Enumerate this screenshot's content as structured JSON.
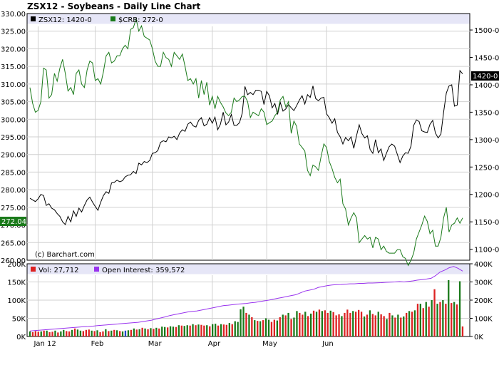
{
  "title": "ZSX12 - Soybeans - Daily Line Chart",
  "watermark": "(c) Barchart.com",
  "colors": {
    "price_line": "#000000",
    "crb_line": "#1a7a1a",
    "vol_up": "#1a7a1a",
    "vol_down": "#dd2222",
    "vol_unch": "#2244cc",
    "open_interest": "#9933ee",
    "legend_band": "#e6e6f7",
    "grid": "#d0d0d0",
    "price_tag_bg": "#000000",
    "crb_tag_bg": "#1a7a1a"
  },
  "chart_data": [
    {
      "type": "line",
      "x_label_months": [
        "Jan 12",
        "Feb",
        "Mar",
        "Apr",
        "May",
        "Jun"
      ],
      "legend": [
        {
          "series": "price",
          "text": "ZSX12: 1420-0"
        },
        {
          "series": "crb",
          "text": "$CRB: 272-0"
        }
      ],
      "left_axis": {
        "label": "$CRB",
        "range": [
          260,
          330
        ],
        "ticks": [
          "330.00",
          "325.00",
          "320.00",
          "315.00",
          "310.00",
          "305.00",
          "300.00",
          "295.00",
          "290.00",
          "285.00",
          "280.00",
          "275.00",
          "270.00",
          "265.00",
          "260.00"
        ]
      },
      "right_axis": {
        "label": "ZSX12",
        "range": [
          1080,
          1530
        ],
        "ticks": [
          "1500-0",
          "1450-0",
          "1400-0",
          "1350-0",
          "1300-0",
          "1250-0",
          "1200-0",
          "1150-0",
          "1100-0"
        ]
      },
      "last_values": {
        "price": "1420-0",
        "crb": "272.04"
      },
      "series": [
        {
          "name": "ZSX12",
          "axis": "right",
          "values": [
            1193,
            1190,
            1187,
            1192,
            1200,
            1198,
            1180,
            1183,
            1175,
            1172,
            1165,
            1160,
            1150,
            1145,
            1160,
            1150,
            1170,
            1160,
            1175,
            1168,
            1180,
            1190,
            1195,
            1186,
            1178,
            1171,
            1186,
            1198,
            1205,
            1202,
            1221,
            1222,
            1226,
            1223,
            1225,
            1232,
            1235,
            1236,
            1242,
            1238,
            1257,
            1254,
            1260,
            1258,
            1262,
            1275,
            1276,
            1280,
            1295,
            1298,
            1296,
            1305,
            1303,
            1306,
            1300,
            1312,
            1318,
            1315,
            1328,
            1332,
            1325,
            1323,
            1335,
            1340,
            1325,
            1328,
            1340,
            1330,
            1341,
            1318,
            1328,
            1350,
            1327,
            1332,
            1346,
            1326,
            1326,
            1331,
            1348,
            1397,
            1382,
            1386,
            1382,
            1390,
            1390,
            1388,
            1364,
            1388,
            1380,
            1358,
            1366,
            1346,
            1368,
            1352,
            1356,
            1364,
            1358,
            1353,
            1362,
            1372,
            1380,
            1365,
            1382,
            1377,
            1398,
            1375,
            1371,
            1376,
            1377,
            1347,
            1340,
            1330,
            1338,
            1313,
            1305,
            1292,
            1304,
            1298,
            1305,
            1284,
            1307,
            1327,
            1311,
            1303,
            1307,
            1282,
            1275,
            1300,
            1276,
            1283,
            1262,
            1275,
            1287,
            1292,
            1288,
            1273,
            1258,
            1270,
            1276,
            1275,
            1288,
            1326,
            1336,
            1333,
            1316,
            1314,
            1313,
            1328,
            1335,
            1312,
            1303,
            1310,
            1350,
            1385,
            1398,
            1400,
            1361,
            1363,
            1426,
            1420
          ]
        },
        {
          "name": "$CRB",
          "axis": "left",
          "values": [
            309.0,
            304.5,
            302.0,
            302.5,
            305.0,
            314.5,
            314.0,
            306.0,
            307.0,
            313.0,
            310.8,
            314.5,
            317.0,
            313.0,
            308.0,
            309.0,
            307.0,
            313.0,
            314.0,
            310.0,
            309.0,
            314.0,
            316.5,
            316.0,
            311.0,
            311.5,
            310.0,
            313.5,
            318.0,
            319.0,
            316.0,
            316.5,
            318.0,
            318.0,
            320.0,
            321.0,
            320.0,
            325.5,
            326.0,
            328.5,
            325.0,
            326.5,
            323.5,
            323.0,
            322.5,
            320.0,
            316.5,
            315.0,
            315.0,
            319.0,
            317.5,
            317.0,
            315.0,
            319.0,
            318.0,
            317.0,
            318.5,
            315.0,
            311.0,
            311.5,
            310.0,
            311.5,
            306.0,
            311.0,
            307.0,
            310.5,
            304.0,
            306.5,
            303.0,
            306.5,
            304.8,
            303.5,
            301.8,
            301.0,
            302.0,
            306.0,
            305.0,
            305.5,
            306.5,
            306.5,
            305.0,
            300.5,
            302.0,
            301.5,
            301.0,
            303.0,
            302.0,
            298.5,
            299.0,
            299.5,
            301.0,
            302.0,
            305.5,
            306.5,
            303.5,
            305.0,
            296.0,
            299.5,
            298.0,
            293.0,
            292.0,
            291.0,
            285.5,
            284.0,
            287.0,
            286.5,
            285.5,
            289.5,
            293.0,
            292.0,
            288.0,
            286.0,
            283.5,
            282.0,
            283.0,
            276.0,
            274.5,
            270.0,
            272.0,
            273.5,
            272.0,
            265.0,
            266.0,
            267.0,
            266.0,
            266.5,
            263.5,
            266.5,
            266.0,
            263.0,
            264.0,
            262.5,
            262.0,
            262.0,
            262.0,
            263.0,
            263.0,
            261.0,
            260.5,
            258.5,
            260.0,
            262.0,
            266.0,
            268.0,
            270.0,
            272.5,
            271.0,
            267.5,
            268.5,
            264.0,
            264.0,
            266.5,
            272.0,
            275.0,
            268.0,
            270.0,
            270.5,
            272.0,
            270.5,
            272.0
          ]
        }
      ]
    },
    {
      "type": "bar",
      "legend": [
        {
          "series": "volume",
          "text": "Vol: 27,712"
        },
        {
          "series": "open_interest",
          "text": "Open Interest: 359,572"
        }
      ],
      "left_axis": {
        "label": "Volume",
        "range": [
          0,
          200000
        ],
        "ticks": [
          "200K",
          "150K",
          "100K",
          "50K",
          "0K"
        ]
      },
      "right_axis": {
        "label": "Open Interest",
        "range": [
          0,
          400000
        ],
        "ticks": [
          "400K",
          "300K",
          "200K",
          "100K",
          "0K"
        ]
      },
      "volume": [
        14000,
        12000,
        15000,
        13000,
        14000,
        16000,
        16000,
        12000,
        13000,
        16000,
        11000,
        14000,
        18000,
        15000,
        14000,
        18000,
        22000,
        19000,
        16000,
        15000,
        18000,
        19000,
        16000,
        15000,
        17000,
        12000,
        14000,
        20000,
        15000,
        16000,
        18000,
        17000,
        15000,
        14000,
        16000,
        17000,
        18000,
        22000,
        19000,
        20000,
        24000,
        22000,
        20000,
        23000,
        21000,
        24000,
        22000,
        27000,
        26000,
        25000,
        28000,
        27000,
        26000,
        31000,
        30000,
        29000,
        31000,
        30000,
        34000,
        31000,
        33000,
        32000,
        30000,
        31000,
        28000,
        34000,
        35000,
        30000,
        34000,
        33000,
        32000,
        37000,
        34000,
        42000,
        40000,
        75000,
        82000,
        65000,
        60000,
        53000,
        45000,
        43000,
        42000,
        45000,
        50000,
        46000,
        40000,
        46000,
        44000,
        53000,
        60000,
        58000,
        65000,
        48000,
        52000,
        70000,
        65000,
        60000,
        68000,
        56000,
        63000,
        71000,
        68000,
        74000,
        70000,
        72000,
        65000,
        71000,
        67000,
        58000,
        61000,
        56000,
        65000,
        74000,
        65000,
        70000,
        68000,
        73000,
        68000,
        55000,
        60000,
        72000,
        62000,
        58000,
        68000,
        61000,
        56000,
        48000,
        65000,
        58000,
        52000,
        60000,
        52000,
        55000,
        65000,
        70000,
        68000,
        72000,
        90000,
        90000,
        78000,
        95000,
        82000,
        100000,
        130000,
        90000,
        95000,
        100000,
        90000,
        155000,
        92000,
        95000,
        88000,
        152000,
        27712
      ],
      "volume_dir": [
        "u",
        "d",
        "d",
        "d",
        "u",
        "d",
        "u",
        "d",
        "d",
        "u",
        "d",
        "u",
        "u",
        "d",
        "d",
        "u",
        "d",
        "u",
        "u",
        "d",
        "d",
        "d",
        "u",
        "d",
        "u",
        "d",
        "d",
        "u",
        "d",
        "u",
        "d",
        "u",
        "d",
        "u",
        "n",
        "u",
        "d",
        "u",
        "d",
        "u",
        "d",
        "u",
        "d",
        "u",
        "d",
        "u",
        "d",
        "u",
        "u",
        "d",
        "u",
        "u",
        "d",
        "u",
        "d",
        "u",
        "u",
        "d",
        "u",
        "d",
        "u",
        "d",
        "d",
        "u",
        "d",
        "u",
        "u",
        "d",
        "u",
        "d",
        "d",
        "u",
        "d",
        "u",
        "u",
        "u",
        "u",
        "d",
        "u",
        "d",
        "u",
        "d",
        "u",
        "d",
        "u",
        "u",
        "d",
        "d",
        "u",
        "d",
        "u",
        "d",
        "u",
        "d",
        "u",
        "u",
        "d",
        "d",
        "u",
        "d",
        "u",
        "d",
        "u",
        "d",
        "u",
        "d",
        "d",
        "u",
        "d",
        "d",
        "d",
        "u",
        "d",
        "d",
        "d",
        "u",
        "d",
        "d",
        "d",
        "u",
        "d",
        "u",
        "d",
        "d",
        "u",
        "d",
        "d",
        "u",
        "d",
        "u",
        "d",
        "u",
        "d",
        "u",
        "d",
        "u",
        "d",
        "u",
        "d",
        "u",
        "d",
        "u",
        "d",
        "u",
        "d",
        "u",
        "d",
        "u",
        "d",
        "u",
        "d",
        "u",
        "d",
        "u",
        "d",
        "d",
        "u",
        "u",
        "d",
        "u",
        "d",
        "u",
        "d",
        "u",
        "d",
        "u",
        "d",
        "d",
        "u",
        "d",
        "u",
        "d",
        "u",
        "d",
        "u",
        "d"
      ],
      "open_interest": [
        30000,
        32000,
        34000,
        36000,
        38000,
        40000,
        42000,
        44000,
        46000,
        48000,
        50000,
        52000,
        54000,
        55000,
        57000,
        60000,
        62000,
        64000,
        66000,
        68000,
        70000,
        72000,
        74000,
        76000,
        78000,
        82000,
        86000,
        90000,
        96000,
        102000,
        108000,
        115000,
        120000,
        125000,
        130000,
        135000,
        138000,
        140000,
        145000,
        150000,
        155000,
        160000,
        165000,
        170000,
        172000,
        175000,
        178000,
        180000,
        182000,
        185000,
        188000,
        192000,
        196000,
        200000,
        205000,
        210000,
        215000,
        220000,
        225000,
        230000,
        240000,
        250000,
        255000,
        260000,
        270000,
        275000,
        280000,
        283000,
        285000,
        286000,
        288000,
        290000,
        290000,
        292000,
        292000,
        294000,
        294000,
        295000,
        296000,
        298000,
        299000,
        300000,
        302000,
        300000,
        303000,
        306000,
        310000,
        313000,
        316000,
        320000,
        335000,
        355000,
        365000,
        378000,
        385000,
        375000,
        359572
      ]
    }
  ]
}
